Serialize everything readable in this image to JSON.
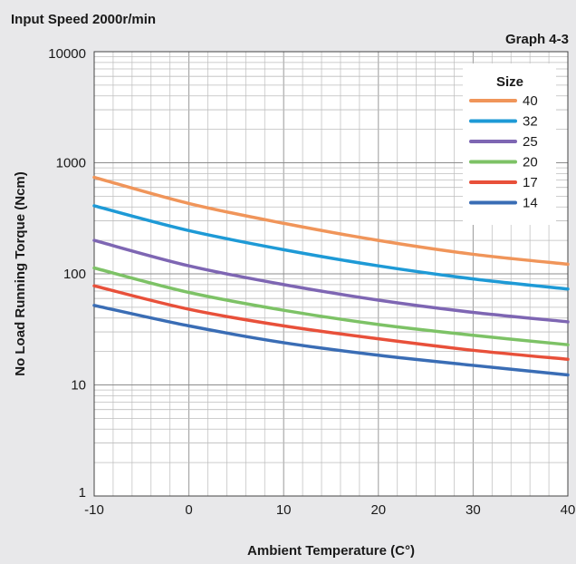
{
  "chart_data": {
    "type": "line",
    "title": "Input Speed 2000r/min",
    "subtitle": "Graph 4-3",
    "xlabel": "Ambient Temperature (C°)",
    "ylabel": "No Load Running Torque (Ncm)",
    "xlim": [
      -10,
      40
    ],
    "ylim": [
      1,
      10000
    ],
    "yscale": "log",
    "grid": true,
    "legend_position": "top-right",
    "legend_title": "Size",
    "x_ticks": [
      "-10",
      "0",
      "10",
      "20",
      "30",
      "40"
    ],
    "y_ticks": [
      "1",
      "10",
      "100",
      "1000",
      "10000"
    ],
    "x": [
      -10,
      0,
      10,
      20,
      30,
      40
    ],
    "series": [
      {
        "name": "40",
        "color": "#f0955a",
        "values": [
          740,
          430,
          285,
          200,
          150,
          122
        ]
      },
      {
        "name": "32",
        "color": "#1e9ad6",
        "values": [
          410,
          245,
          165,
          118,
          90,
          73
        ]
      },
      {
        "name": "25",
        "color": "#7e66b3",
        "values": [
          200,
          118,
          80,
          58,
          45,
          37
        ]
      },
      {
        "name": "20",
        "color": "#7dc266",
        "values": [
          113,
          68,
          47,
          35,
          28,
          23
        ]
      },
      {
        "name": "17",
        "color": "#e8503a",
        "values": [
          78,
          48,
          34,
          26,
          20.5,
          17
        ]
      },
      {
        "name": "14",
        "color": "#3a6db5",
        "values": [
          52,
          34,
          24,
          18.5,
          15,
          12.3
        ]
      }
    ]
  }
}
